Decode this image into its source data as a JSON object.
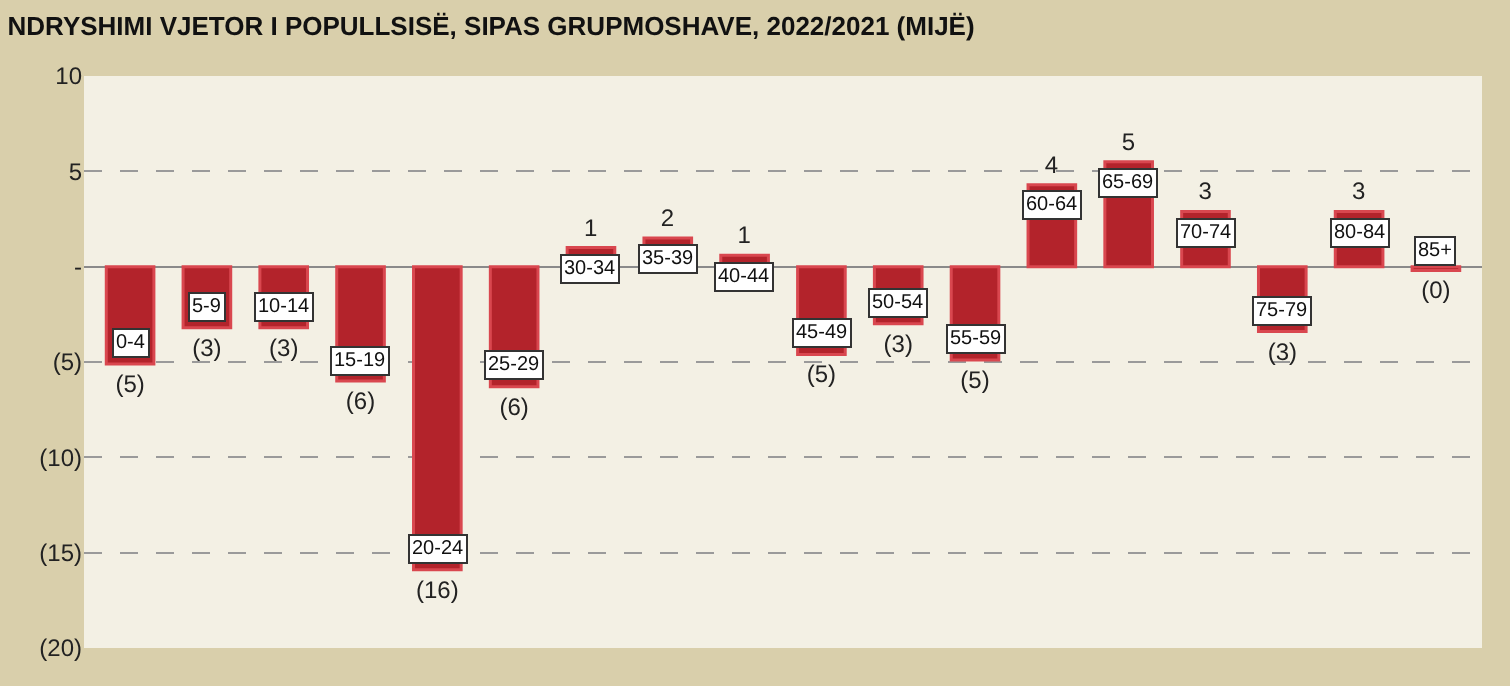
{
  "chart_data": {
    "type": "bar",
    "title": "NDRYSHIMI VJETOR I POPULLSISË, SIPAS GRUPMOSHAVE, 2022/2021 (MIJË)",
    "categories": [
      "0-4",
      "5-9",
      "10-14",
      "15-19",
      "20-24",
      "25-29",
      "30-34",
      "35-39",
      "40-44",
      "45-49",
      "50-54",
      "55-59",
      "60-64",
      "65-69",
      "70-74",
      "75-79",
      "80-84",
      "85+"
    ],
    "values": [
      -5.1,
      -3.2,
      -3.2,
      -6.0,
      -15.9,
      -6.3,
      1.0,
      1.5,
      0.6,
      -4.6,
      -3.0,
      -4.9,
      4.3,
      5.5,
      2.9,
      -3.4,
      2.9,
      -0.2
    ],
    "value_labels": [
      "(5)",
      "(3)",
      "(3)",
      "(6)",
      "(16)",
      "(6)",
      "1",
      "2",
      "1",
      "(5)",
      "(3)",
      "(5)",
      "4",
      "5",
      "3",
      "(3)",
      "3",
      "(0)"
    ],
    "color": "#b3232b",
    "ylim": [
      -20,
      10
    ],
    "yticks": [
      10,
      5,
      {
        "value": 0,
        "label": "-"
      },
      {
        "value": -5,
        "label": "(5)"
      },
      {
        "value": -10,
        "label": "(10)"
      },
      {
        "value": -15,
        "label": "(15)"
      },
      {
        "value": -20,
        "label": "(20)"
      }
    ],
    "grid": "y",
    "legend": false,
    "tick_labels": "y"
  }
}
